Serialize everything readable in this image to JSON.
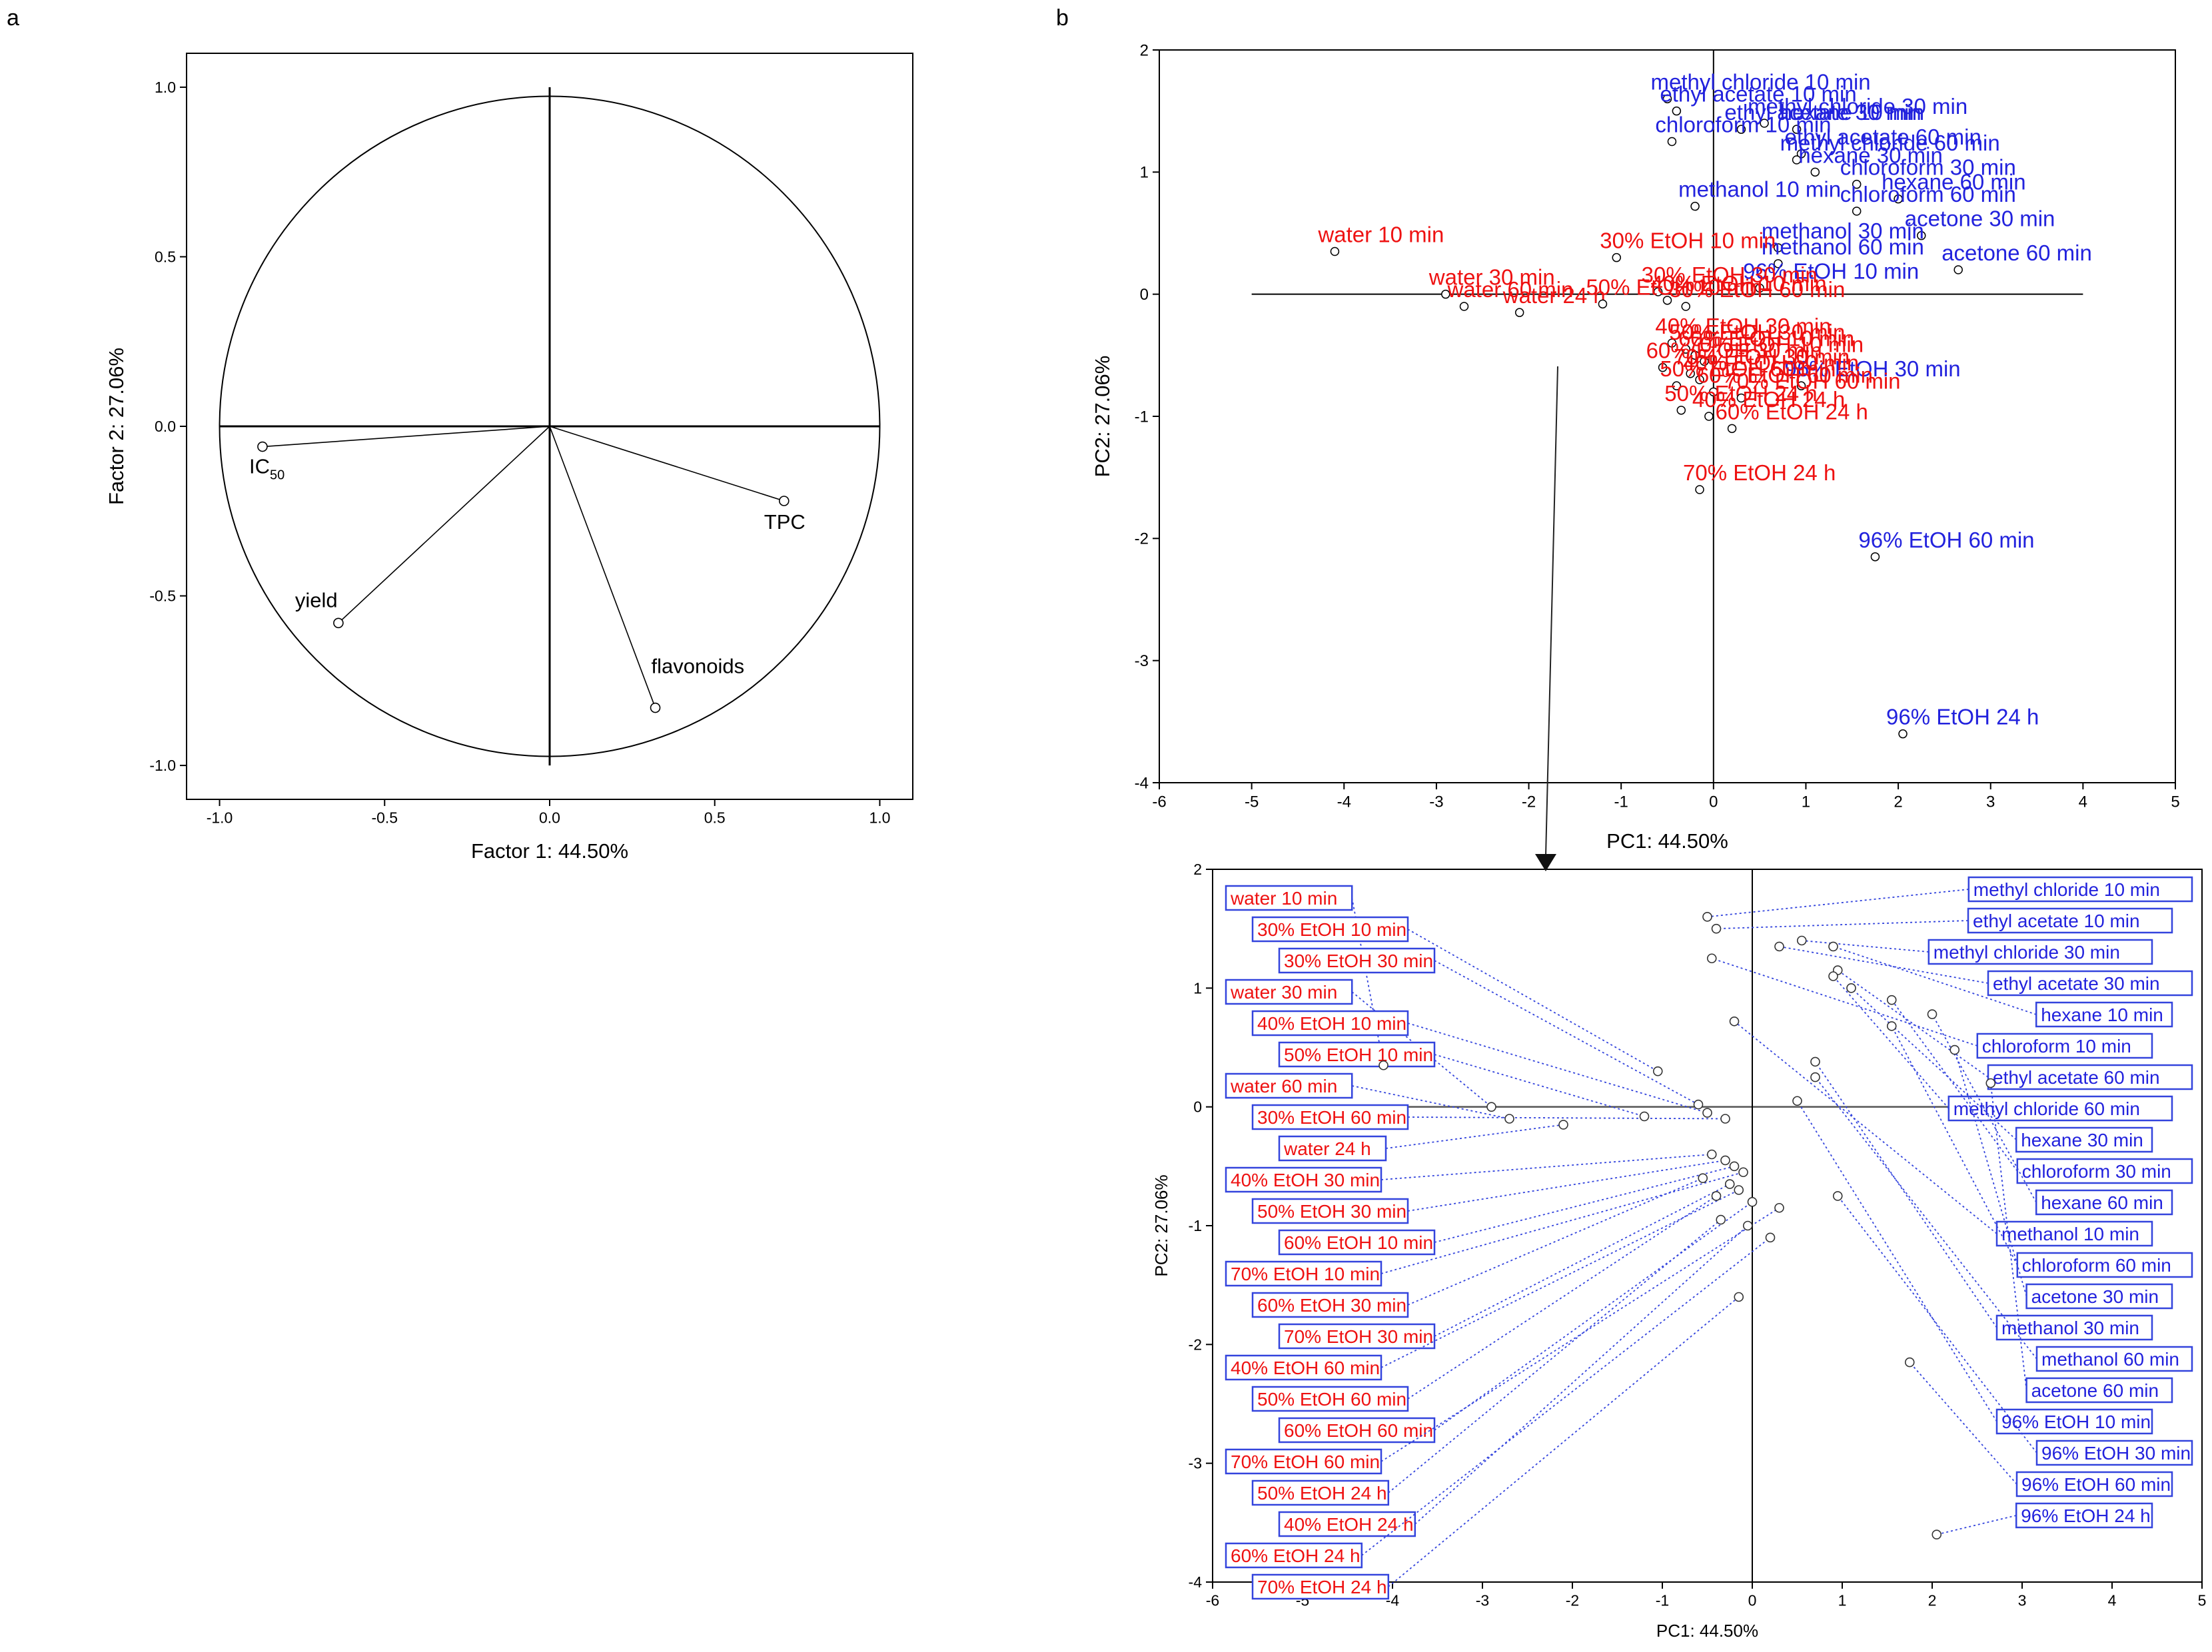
{
  "panel_labels": {
    "a": "a",
    "b": "b"
  },
  "colors": {
    "red": "#ee1111",
    "blue": "#2222dd",
    "axis": "#000000",
    "leader": "#3344dd"
  },
  "chart_data": [
    {
      "id": "loadings",
      "type": "scatter",
      "subtype": "correlation-circle",
      "xlabel": "Factor 1: 44.50%",
      "ylabel": "Factor 2: 27.06%",
      "xlim": [
        -1.1,
        1.1
      ],
      "ylim": [
        -1.1,
        1.1
      ],
      "xticks": [
        {
          "v": -1.0,
          "label": "-1.0"
        },
        {
          "v": -0.5,
          "label": "-0.5"
        },
        {
          "v": 0.0,
          "label": "0.0"
        },
        {
          "v": 0.5,
          "label": "0.5"
        },
        {
          "v": 1.0,
          "label": "1.0"
        }
      ],
      "yticks": [
        {
          "v": 1.0,
          "label": "1.0"
        },
        {
          "v": 0.5,
          "label": "0.5"
        },
        {
          "v": 0.0,
          "label": "0.0"
        },
        {
          "v": -0.5,
          "label": "-0.5"
        },
        {
          "v": -1.0,
          "label": "-1.0"
        }
      ],
      "points": [
        {
          "label": "IC",
          "sub": "50",
          "x": -0.87,
          "y": -0.06
        },
        {
          "label": "TPC",
          "x": 0.71,
          "y": -0.22
        },
        {
          "label": "yield",
          "x": -0.64,
          "y": -0.58
        },
        {
          "label": "flavonoids",
          "x": 0.32,
          "y": -0.83
        }
      ]
    },
    {
      "id": "scores",
      "type": "scatter",
      "xlabel": "PC1: 44.50%",
      "ylabel": "PC2: 27.06%",
      "xlim": [
        -6,
        5
      ],
      "ylim": [
        -4,
        2
      ],
      "xticks": [
        -6,
        -5,
        -4,
        -3,
        -2,
        -1,
        0,
        1,
        2,
        3,
        4,
        5
      ],
      "yticks": [
        2,
        1,
        0,
        -1,
        -2,
        -3,
        -4
      ],
      "points": [
        {
          "label": "methyl chloride 10 min",
          "x": -0.5,
          "y": 1.6,
          "c": "blue"
        },
        {
          "label": "ethyl acetate 10 min",
          "x": -0.4,
          "y": 1.5,
          "c": "blue"
        },
        {
          "label": "methyl chloride 30 min",
          "x": 0.55,
          "y": 1.4,
          "c": "blue"
        },
        {
          "label": "ethyl acetate 30 min",
          "x": 0.3,
          "y": 1.35,
          "c": "blue"
        },
        {
          "label": "hexane 10 min",
          "x": 0.9,
          "y": 1.35,
          "c": "blue"
        },
        {
          "label": "chloroform 10 min",
          "x": -0.45,
          "y": 1.25,
          "c": "blue"
        },
        {
          "label": "ethyl acetate 60 min",
          "x": 0.95,
          "y": 1.15,
          "c": "blue"
        },
        {
          "label": "methyl chloride 60 min",
          "x": 0.9,
          "y": 1.1,
          "c": "blue"
        },
        {
          "label": "hexane 30 min",
          "x": 1.1,
          "y": 1.0,
          "c": "blue"
        },
        {
          "label": "chloroform 30 min",
          "x": 1.55,
          "y": 0.9,
          "c": "blue"
        },
        {
          "label": "hexane 60 min",
          "x": 2.0,
          "y": 0.78,
          "c": "blue"
        },
        {
          "label": "methanol 10 min",
          "x": -0.2,
          "y": 0.72,
          "c": "blue"
        },
        {
          "label": "chloroform 60 min",
          "x": 1.55,
          "y": 0.68,
          "c": "blue"
        },
        {
          "label": "acetone 30 min",
          "x": 2.25,
          "y": 0.48,
          "c": "blue"
        },
        {
          "label": "methanol 30 min",
          "x": 0.7,
          "y": 0.38,
          "c": "blue"
        },
        {
          "label": "methanol 60 min",
          "x": 0.7,
          "y": 0.25,
          "c": "blue"
        },
        {
          "label": "acetone 60 min",
          "x": 2.65,
          "y": 0.2,
          "c": "blue"
        },
        {
          "label": "96% EtOH 10 min",
          "x": 0.5,
          "y": 0.05,
          "c": "blue"
        },
        {
          "label": "96% EtOH 30 min",
          "x": 0.95,
          "y": -0.75,
          "c": "blue"
        },
        {
          "label": "96% EtOH 60 min",
          "x": 1.75,
          "y": -2.15,
          "c": "blue"
        },
        {
          "label": "96% EtOH 24 h",
          "x": 2.05,
          "y": -3.6,
          "c": "blue"
        },
        {
          "label": "water 10 min",
          "x": -4.1,
          "y": 0.35,
          "c": "red"
        },
        {
          "label": "30% EtOH 10 min",
          "x": -1.05,
          "y": 0.3,
          "c": "red"
        },
        {
          "label": "water 30 min",
          "x": -2.9,
          "y": 0.0,
          "c": "red"
        },
        {
          "label": "30% EtOH 30 min",
          "x": -0.6,
          "y": 0.02,
          "c": "red"
        },
        {
          "label": "water 60 min",
          "x": -2.7,
          "y": -0.1,
          "c": "red"
        },
        {
          "label": "40% EtOH 10 min",
          "x": -0.5,
          "y": -0.05,
          "c": "red"
        },
        {
          "label": "30% EtOH 60 min",
          "x": -0.3,
          "y": -0.1,
          "c": "red"
        },
        {
          "label": "water 24 h",
          "x": -2.1,
          "y": -0.15,
          "c": "red"
        },
        {
          "label": "50% EtOH 10 min",
          "x": -1.2,
          "y": -0.08,
          "c": "red"
        },
        {
          "label": "40% EtOH 30 min",
          "x": -0.45,
          "y": -0.4,
          "c": "red"
        },
        {
          "label": "50% EtOH 30 min",
          "x": -0.3,
          "y": -0.45,
          "c": "red"
        },
        {
          "label": "60% EtOH 10 min",
          "x": -0.2,
          "y": -0.5,
          "c": "red"
        },
        {
          "label": "70% EtOH 10 min",
          "x": -0.1,
          "y": -0.55,
          "c": "red"
        },
        {
          "label": "60% EtOH 30 min",
          "x": -0.55,
          "y": -0.6,
          "c": "red"
        },
        {
          "label": "70% EtOH 30 min",
          "x": -0.25,
          "y": -0.65,
          "c": "red"
        },
        {
          "label": "40% EtOH 60 min",
          "x": -0.15,
          "y": -0.7,
          "c": "red"
        },
        {
          "label": "50% EtOH 60 min",
          "x": -0.4,
          "y": -0.75,
          "c": "red"
        },
        {
          "label": "60% EtOH 60 min",
          "x": 0.0,
          "y": -0.8,
          "c": "red"
        },
        {
          "label": "50% EtOH 24 h",
          "x": -0.35,
          "y": -0.95,
          "c": "red"
        },
        {
          "label": "70% EtOH 60 min",
          "x": 0.3,
          "y": -0.85,
          "c": "red"
        },
        {
          "label": "40% EtOH 24 h",
          "x": -0.05,
          "y": -1.0,
          "c": "red"
        },
        {
          "label": "60% EtOH 24 h",
          "x": 0.2,
          "y": -1.1,
          "c": "red"
        },
        {
          "label": "70% EtOH 24 h",
          "x": -0.15,
          "y": -1.6,
          "c": "red"
        }
      ]
    }
  ]
}
